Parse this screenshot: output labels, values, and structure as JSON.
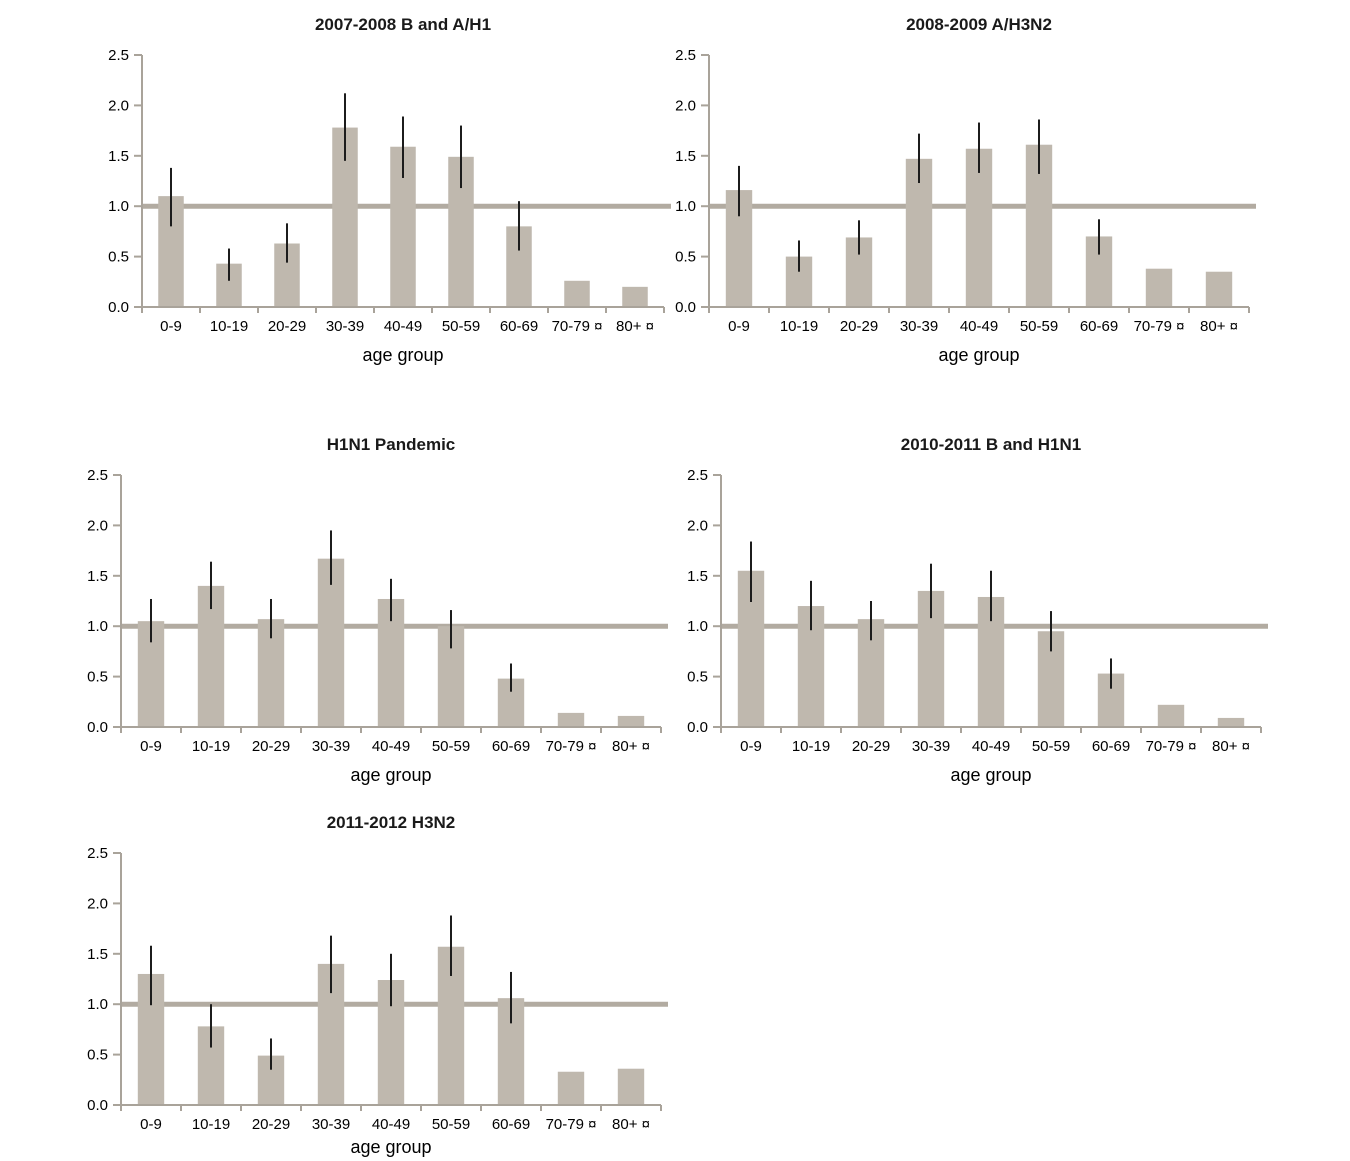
{
  "page": {
    "background": "#ffffff",
    "description_note": "Panel of five bar charts of relative risk by age group per influenza season"
  },
  "colors": {
    "bar": "#bfb8ae",
    "reference_line": "#b2aba1",
    "axis": "#a9a39a",
    "error_bar": "#1c1c1c",
    "text": "#000000",
    "title_text": "#1a1a1a"
  },
  "chart_data": [
    {
      "type": "bar",
      "title": "2007-2008 B and A/H1",
      "xlabel": "age group",
      "ylabel": "",
      "ylim": [
        0,
        2.5
      ],
      "ytick_labels": [
        "0.0",
        "0.5",
        "1.0",
        "1.5",
        "2.0",
        "2.5"
      ],
      "grid": "off",
      "legend": "none",
      "reference_line": 1.0,
      "categories": [
        "0-9",
        "10-19",
        "20-29",
        "30-39",
        "40-49",
        "50-59",
        "60-69",
        "70-79 ¤",
        "80+ ¤"
      ],
      "values": [
        1.1,
        0.43,
        0.63,
        1.78,
        1.59,
        1.49,
        0.8,
        0.26,
        0.2
      ],
      "error_low": [
        0.8,
        0.26,
        0.44,
        1.45,
        1.28,
        1.18,
        0.56,
        null,
        null
      ],
      "error_high": [
        1.38,
        0.58,
        0.83,
        2.12,
        1.89,
        1.8,
        1.05,
        null,
        null
      ]
    },
    {
      "type": "bar",
      "title": "2008-2009 A/H3N2",
      "xlabel": "age group",
      "ylabel": "",
      "ylim": [
        0,
        2.5
      ],
      "ytick_labels": [
        "0.0",
        "0.5",
        "1.0",
        "1.5",
        "2.0",
        "2.5"
      ],
      "grid": "off",
      "legend": "none",
      "reference_line": 1.0,
      "categories": [
        "0-9",
        "10-19",
        "20-29",
        "30-39",
        "40-49",
        "50-59",
        "60-69",
        "70-79 ¤",
        "80+ ¤"
      ],
      "values": [
        1.16,
        0.5,
        0.69,
        1.47,
        1.57,
        1.61,
        0.7,
        0.38,
        0.35
      ],
      "error_low": [
        0.9,
        0.35,
        0.52,
        1.23,
        1.33,
        1.32,
        0.52,
        null,
        null
      ],
      "error_high": [
        1.4,
        0.66,
        0.86,
        1.72,
        1.83,
        1.86,
        0.87,
        null,
        null
      ]
    },
    {
      "type": "bar",
      "title": "H1N1 Pandemic",
      "xlabel": "age group",
      "ylabel": "",
      "ylim": [
        0,
        2.5
      ],
      "ytick_labels": [
        "0.0",
        "0.5",
        "1.0",
        "1.5",
        "2.0",
        "2.5"
      ],
      "grid": "off",
      "legend": "none",
      "reference_line": 1.0,
      "categories": [
        "0-9",
        "10-19",
        "20-29",
        "30-39",
        "40-49",
        "50-59",
        "60-69",
        "70-79 ¤",
        "80+ ¤"
      ],
      "values": [
        1.05,
        1.4,
        1.07,
        1.67,
        1.27,
        1.0,
        0.48,
        0.14,
        0.11
      ],
      "error_low": [
        0.84,
        1.17,
        0.88,
        1.41,
        1.05,
        0.78,
        0.35,
        null,
        null
      ],
      "error_high": [
        1.27,
        1.64,
        1.27,
        1.95,
        1.47,
        1.16,
        0.63,
        null,
        null
      ]
    },
    {
      "type": "bar",
      "title": "2010-2011 B and H1N1",
      "xlabel": "age group",
      "ylabel": "",
      "ylim": [
        0,
        2.5
      ],
      "ytick_labels": [
        "0.0",
        "0.5",
        "1.0",
        "1.5",
        "2.0",
        "2.5"
      ],
      "grid": "off",
      "legend": "none",
      "reference_line": 1.0,
      "categories": [
        "0-9",
        "10-19",
        "20-29",
        "30-39",
        "40-49",
        "50-59",
        "60-69",
        "70-79 ¤",
        "80+ ¤"
      ],
      "values": [
        1.55,
        1.2,
        1.07,
        1.35,
        1.29,
        0.95,
        0.53,
        0.22,
        0.09
      ],
      "error_low": [
        1.24,
        0.96,
        0.86,
        1.08,
        1.05,
        0.75,
        0.38,
        null,
        null
      ],
      "error_high": [
        1.84,
        1.45,
        1.25,
        1.62,
        1.55,
        1.15,
        0.68,
        null,
        null
      ]
    },
    {
      "type": "bar",
      "title": "2011-2012 H3N2",
      "xlabel": "age group",
      "ylabel": "",
      "ylim": [
        0,
        2.5
      ],
      "ytick_labels": [
        "0.0",
        "0.5",
        "1.0",
        "1.5",
        "2.0",
        "2.5"
      ],
      "grid": "off",
      "legend": "none",
      "reference_line": 1.0,
      "categories": [
        "0-9",
        "10-19",
        "20-29",
        "30-39",
        "40-49",
        "50-59",
        "60-69",
        "70-79 ¤",
        "80+ ¤"
      ],
      "values": [
        1.3,
        0.78,
        0.49,
        1.4,
        1.24,
        1.57,
        1.06,
        0.33,
        0.36
      ],
      "error_low": [
        0.99,
        0.57,
        0.35,
        1.11,
        0.98,
        1.28,
        0.81,
        null,
        null
      ],
      "error_high": [
        1.58,
        1.0,
        0.66,
        1.68,
        1.5,
        1.88,
        1.32,
        null,
        null
      ]
    }
  ]
}
